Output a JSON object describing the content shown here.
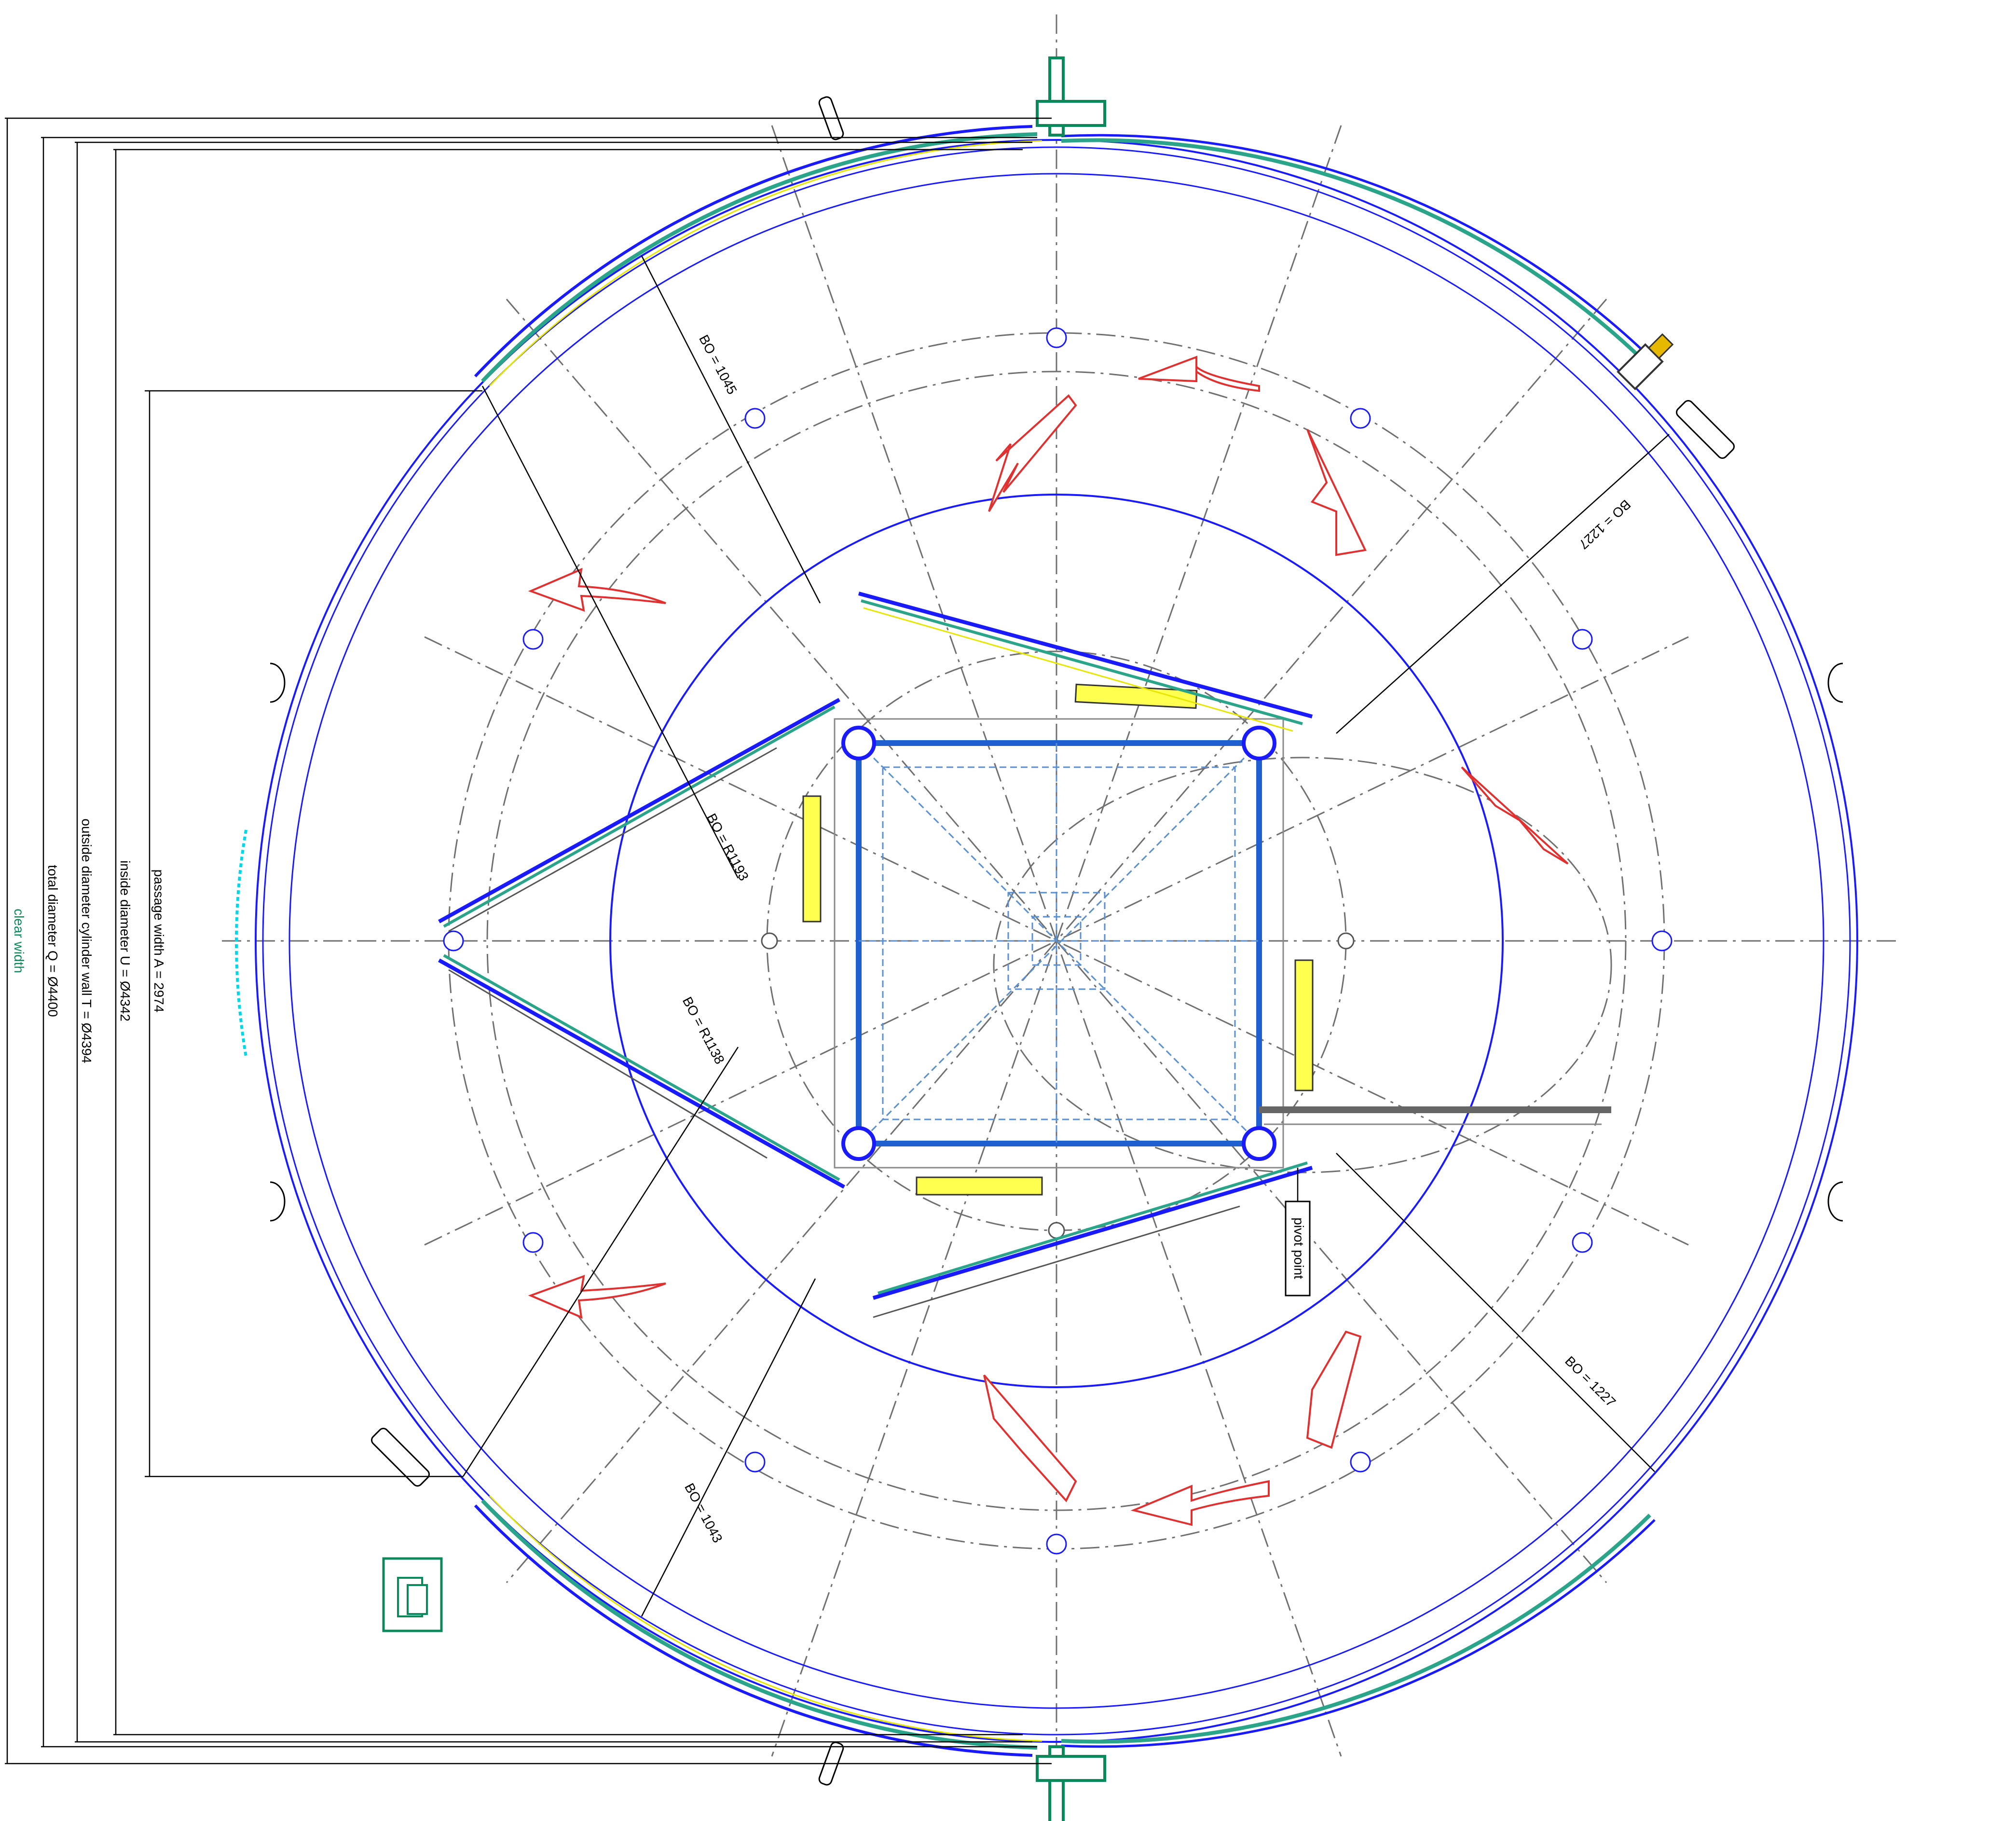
{
  "dimensions": {
    "clear_width": "clear width",
    "total_diameter": "total diameter Q = Ø4400",
    "outside_diameter": "outside diameter cylinder wall T = Ø4394",
    "inside_diameter": "inside diameter U = Ø4342",
    "passage_width": "passage width A = 2974"
  },
  "bo_labels": {
    "bo_1045": "BO = 1045",
    "bo_r1193": "BO = R1193",
    "bo_r1138": "BO = R1138",
    "bo_1043": "BO = 1043",
    "bo_1227_top": "BO = 1227",
    "bo_1227_bottom": "BO = 1227"
  },
  "annotations": {
    "pivot_point": "pivot point"
  },
  "colors": {
    "wall_blue": "#1a1aff",
    "rail_green": "#2aa58a",
    "rail_yellow": "#e6e600",
    "arrow_red": "#e03030",
    "axis_gray": "#707070",
    "dim_black": "#000000",
    "text_green": "#0a8a5a",
    "inner_frame_blue": "#1f5fd0",
    "light_blue": "#5a8fd0"
  },
  "icons": {
    "rotation_arrow": "curved-arrow-icon",
    "motor": "motor-icon",
    "switch_box": "switch-box-icon"
  }
}
